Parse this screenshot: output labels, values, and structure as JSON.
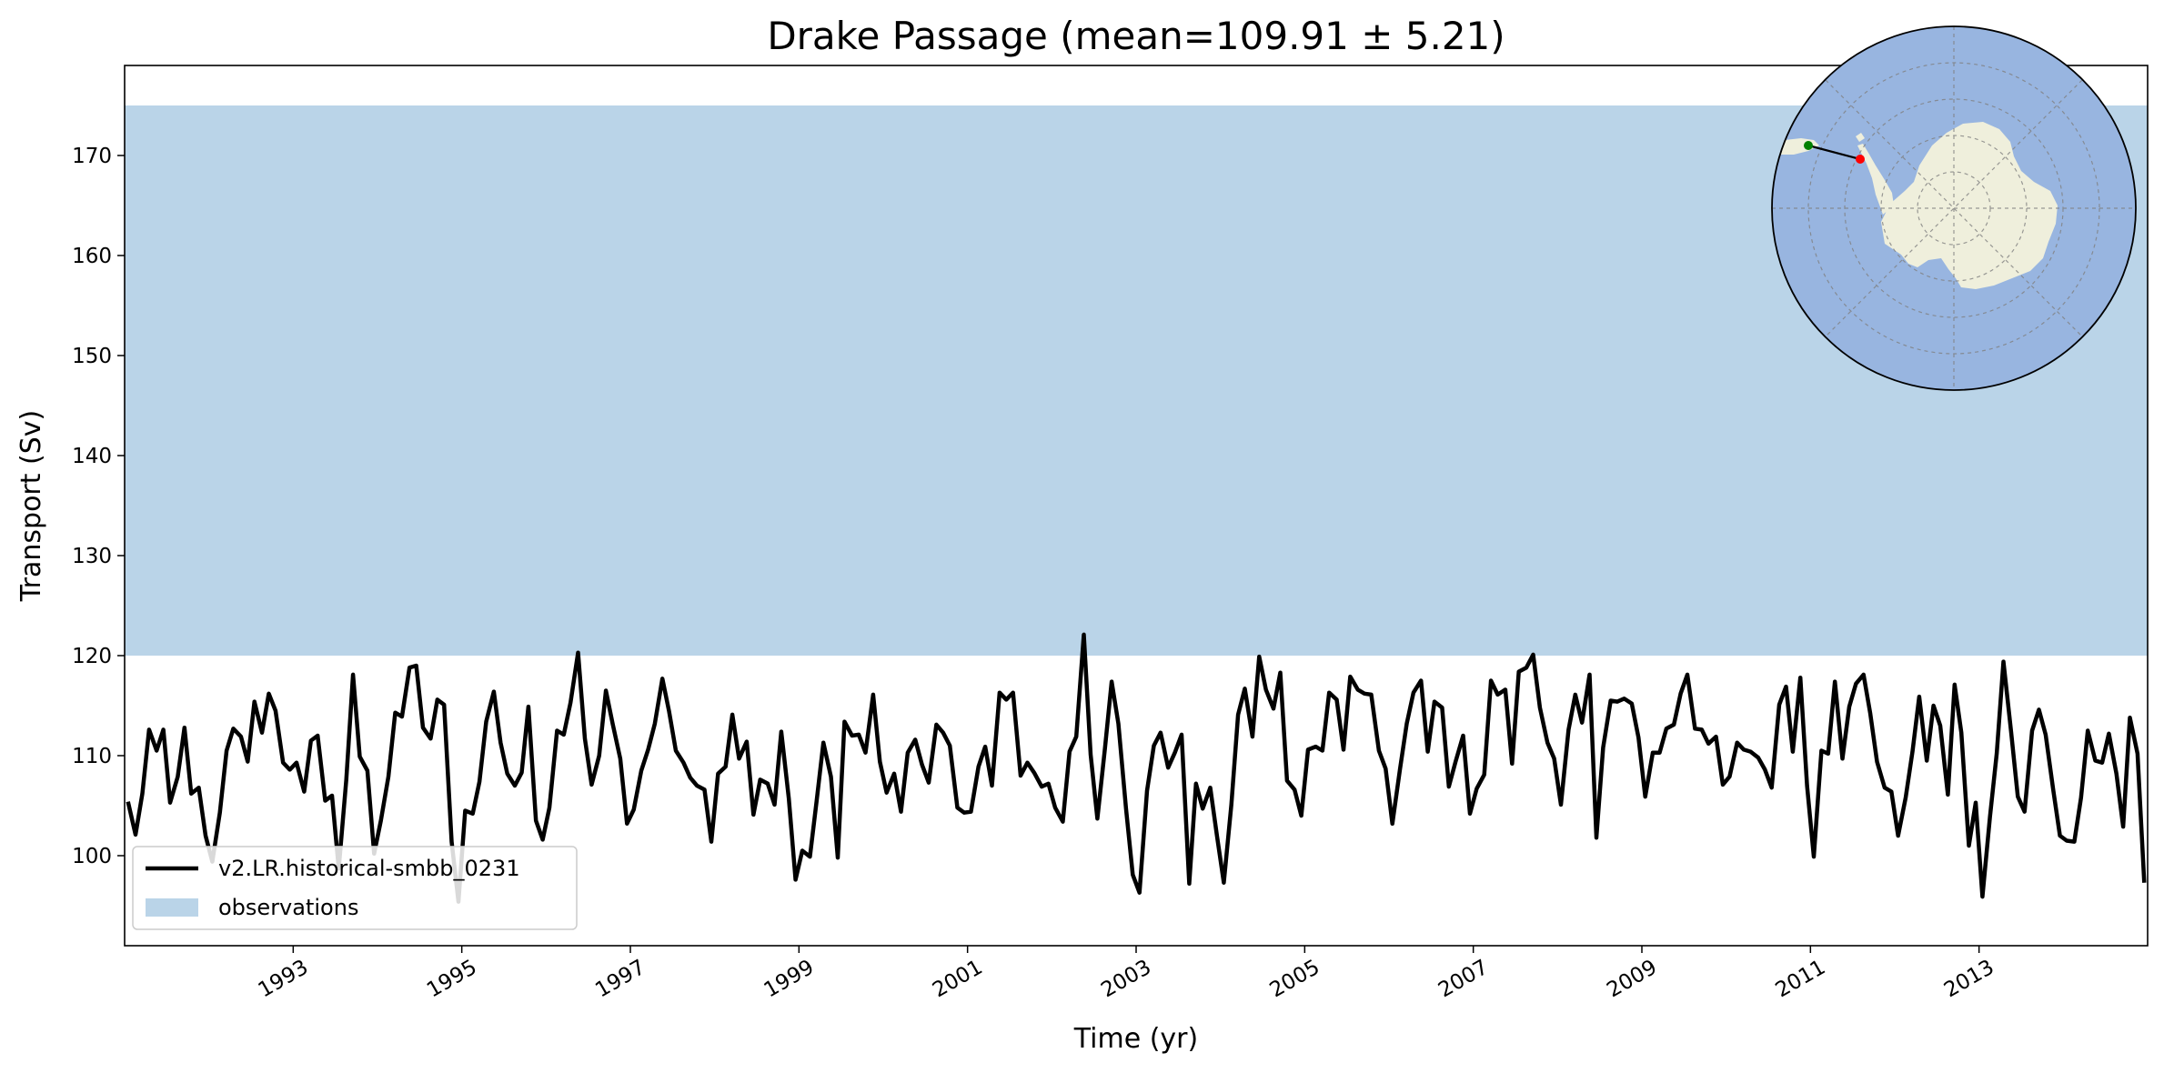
{
  "chart_data": {
    "type": "line",
    "title": "Drake Passage (mean=109.91 ± 5.21)",
    "xlabel": "Time (yr)",
    "ylabel": "Transport (Sv)",
    "xlim": [
      1991.0,
      2015.0
    ],
    "ylim": [
      91.0,
      179.0
    ],
    "xticks": [
      1993,
      1995,
      1997,
      1999,
      2001,
      2003,
      2005,
      2007,
      2009,
      2011,
      2013
    ],
    "yticks": [
      100,
      110,
      120,
      130,
      140,
      150,
      160,
      170
    ],
    "grid": false,
    "legend_position": "bottom-left",
    "observations": {
      "name": "observations",
      "y_min": 120,
      "y_max": 175,
      "color": "#bad4e8"
    },
    "series": [
      {
        "name": "v2.LR.historical-smbb_0231",
        "color": "#000000",
        "x": [
          1991.04,
          1991.13,
          1991.21,
          1991.29,
          1991.38,
          1991.46,
          1991.54,
          1991.63,
          1991.71,
          1991.79,
          1991.88,
          1991.96,
          1992.04,
          1992.13,
          1992.21,
          1992.29,
          1992.38,
          1992.46,
          1992.54,
          1992.63,
          1992.71,
          1992.79,
          1992.88,
          1992.96,
          1993.04,
          1993.13,
          1993.21,
          1993.29,
          1993.38,
          1993.46,
          1993.54,
          1993.63,
          1993.71,
          1993.79,
          1993.88,
          1993.96,
          1994.04,
          1994.13,
          1994.21,
          1994.29,
          1994.38,
          1994.46,
          1994.54,
          1994.63,
          1994.71,
          1994.79,
          1994.88,
          1994.96,
          1995.04,
          1995.13,
          1995.21,
          1995.29,
          1995.38,
          1995.46,
          1995.54,
          1995.63,
          1995.71,
          1995.79,
          1995.88,
          1995.96,
          1996.04,
          1996.13,
          1996.21,
          1996.29,
          1996.38,
          1996.46,
          1996.54,
          1996.63,
          1996.71,
          1996.79,
          1996.88,
          1996.96,
          1997.04,
          1997.13,
          1997.21,
          1997.29,
          1997.38,
          1997.46,
          1997.54,
          1997.63,
          1997.71,
          1997.79,
          1997.88,
          1997.96,
          1998.04,
          1998.13,
          1998.21,
          1998.29,
          1998.38,
          1998.46,
          1998.54,
          1998.63,
          1998.71,
          1998.79,
          1998.88,
          1998.96,
          1999.04,
          1999.13,
          1999.21,
          1999.29,
          1999.38,
          1999.46,
          1999.54,
          1999.63,
          1999.71,
          1999.79,
          1999.88,
          1999.96,
          2000.04,
          2000.13,
          2000.21,
          2000.29,
          2000.38,
          2000.46,
          2000.54,
          2000.63,
          2000.71,
          2000.79,
          2000.88,
          2000.96,
          2001.04,
          2001.13,
          2001.21,
          2001.29,
          2001.38,
          2001.46,
          2001.54,
          2001.63,
          2001.71,
          2001.79,
          2001.88,
          2001.96,
          2002.04,
          2002.13,
          2002.21,
          2002.29,
          2002.38,
          2002.46,
          2002.54,
          2002.63,
          2002.71,
          2002.79,
          2002.88,
          2002.96,
          2003.04,
          2003.13,
          2003.21,
          2003.29,
          2003.38,
          2003.46,
          2003.54,
          2003.63,
          2003.71,
          2003.79,
          2003.88,
          2003.96,
          2004.04,
          2004.13,
          2004.21,
          2004.29,
          2004.38,
          2004.46,
          2004.54,
          2004.63,
          2004.71,
          2004.79,
          2004.88,
          2004.96,
          2005.04,
          2005.13,
          2005.21,
          2005.29,
          2005.38,
          2005.46,
          2005.54,
          2005.63,
          2005.71,
          2005.79,
          2005.88,
          2005.96,
          2006.04,
          2006.13,
          2006.21,
          2006.29,
          2006.38,
          2006.46,
          2006.54,
          2006.63,
          2006.71,
          2006.79,
          2006.88,
          2006.96,
          2007.04,
          2007.13,
          2007.21,
          2007.29,
          2007.38,
          2007.46,
          2007.54,
          2007.63,
          2007.71,
          2007.79,
          2007.88,
          2007.96,
          2008.04,
          2008.13,
          2008.21,
          2008.29,
          2008.38,
          2008.46,
          2008.54,
          2008.63,
          2008.71,
          2008.79,
          2008.88,
          2008.96,
          2009.04,
          2009.13,
          2009.21,
          2009.29,
          2009.38,
          2009.46,
          2009.54,
          2009.63,
          2009.71,
          2009.79,
          2009.88,
          2009.96,
          2010.04,
          2010.13,
          2010.21,
          2010.29,
          2010.38,
          2010.46,
          2010.54,
          2010.63,
          2010.71,
          2010.79,
          2010.88,
          2010.96,
          2011.04,
          2011.13,
          2011.21,
          2011.29,
          2011.38,
          2011.46,
          2011.54,
          2011.63,
          2011.71,
          2011.79,
          2011.88,
          2011.96,
          2012.04,
          2012.13,
          2012.21,
          2012.29,
          2012.38,
          2012.46,
          2012.54,
          2012.63,
          2012.71,
          2012.79,
          2012.88,
          2012.96,
          2013.04,
          2013.13,
          2013.21,
          2013.29,
          2013.38,
          2013.46,
          2013.54,
          2013.63,
          2013.71,
          2013.79,
          2013.88,
          2013.96,
          2014.04,
          2014.13,
          2014.21,
          2014.29,
          2014.38,
          2014.46,
          2014.54,
          2014.63,
          2014.71,
          2014.79,
          2014.88,
          2014.96
        ],
        "values": [
          105.4,
          102.1,
          106.2,
          112.6,
          110.5,
          112.6,
          105.3,
          107.9,
          112.8,
          106.2,
          106.8,
          102.0,
          99.4,
          104.3,
          110.5,
          112.7,
          111.9,
          109.4,
          115.4,
          112.3,
          116.2,
          114.5,
          109.3,
          108.6,
          109.3,
          106.4,
          111.5,
          112.0,
          105.5,
          106.0,
          98.7,
          107.6,
          118.1,
          109.9,
          108.5,
          100.2,
          103.5,
          107.9,
          114.3,
          113.9,
          118.8,
          119.0,
          112.8,
          111.7,
          115.6,
          115.1,
          101.4,
          95.4,
          104.5,
          104.2,
          107.4,
          113.4,
          116.4,
          111.3,
          108.2,
          107.0,
          108.3,
          114.9,
          103.5,
          101.6,
          104.8,
          112.5,
          112.1,
          115.3,
          120.3,
          111.7,
          107.1,
          110.0,
          116.5,
          113.2,
          109.7,
          103.2,
          104.6,
          108.5,
          110.6,
          113.2,
          117.7,
          114.4,
          110.5,
          109.3,
          107.8,
          107.0,
          106.6,
          101.4,
          108.2,
          108.9,
          114.1,
          109.7,
          111.4,
          104.1,
          107.6,
          107.2,
          105.1,
          112.4,
          105.7,
          97.6,
          100.5,
          99.9,
          105.5,
          111.3,
          107.9,
          99.8,
          113.4,
          112.0,
          112.1,
          110.3,
          116.1,
          109.4,
          106.3,
          108.2,
          104.4,
          110.3,
          111.6,
          109.1,
          107.3,
          113.1,
          112.3,
          111.0,
          104.8,
          104.3,
          104.4,
          108.9,
          110.9,
          107.0,
          116.3,
          115.6,
          116.3,
          108.0,
          109.3,
          108.3,
          106.9,
          107.2,
          104.8,
          103.4,
          110.4,
          111.9,
          122.1,
          110.1,
          103.7,
          110.7,
          117.4,
          113.2,
          104.7,
          98.1,
          96.3,
          106.5,
          111.0,
          112.3,
          108.8,
          110.3,
          112.1,
          97.2,
          107.2,
          104.7,
          106.8,
          101.9,
          97.3,
          105.1,
          114.1,
          116.7,
          111.9,
          119.9,
          116.6,
          114.7,
          118.3,
          107.5,
          106.6,
          104.0,
          110.6,
          110.9,
          110.5,
          116.3,
          115.6,
          110.6,
          117.9,
          116.6,
          116.2,
          116.1,
          110.5,
          108.7,
          103.2,
          108.6,
          113.2,
          116.3,
          117.5,
          110.4,
          115.4,
          114.8,
          106.9,
          109.4,
          112.0,
          104.2,
          106.7,
          108.1,
          117.5,
          116.1,
          116.6,
          109.2,
          118.4,
          118.8,
          120.1,
          114.8,
          111.3,
          109.7,
          105.1,
          112.6,
          116.1,
          113.3,
          118.1,
          101.8,
          110.8,
          115.5,
          115.4,
          115.7,
          115.2,
          111.8,
          105.9,
          110.3,
          110.3,
          112.7,
          113.1,
          116.2,
          118.1,
          112.7,
          112.6,
          111.2,
          111.9,
          107.1,
          107.9,
          111.3,
          110.6,
          110.4,
          109.8,
          108.6,
          106.8,
          115.1,
          116.9,
          110.4,
          117.8,
          107.0,
          99.9,
          110.5,
          110.2,
          117.4,
          109.7,
          114.9,
          117.2,
          118.1,
          114.2,
          109.4,
          106.8,
          106.4,
          102.0,
          105.8,
          110.4,
          115.9,
          109.5,
          115.0,
          113.0,
          106.1,
          117.1,
          112.3,
          101.0,
          105.3,
          95.9,
          103.9,
          110.2,
          119.4,
          112.4,
          105.9,
          104.4,
          112.5,
          114.6,
          112.1,
          106.6,
          102.0,
          101.5,
          101.4,
          105.8,
          112.5,
          109.5,
          109.3,
          112.2,
          108.2,
          102.9,
          113.8,
          110.2,
          97.3
        ]
      }
    ],
    "inset_map": {
      "projection": "south-polar-stereographic",
      "ocean_color": "#98b5e0",
      "land_color": "#efefdc",
      "section_start_marker_color": "#008000",
      "section_end_marker_color": "#ff0000"
    }
  }
}
